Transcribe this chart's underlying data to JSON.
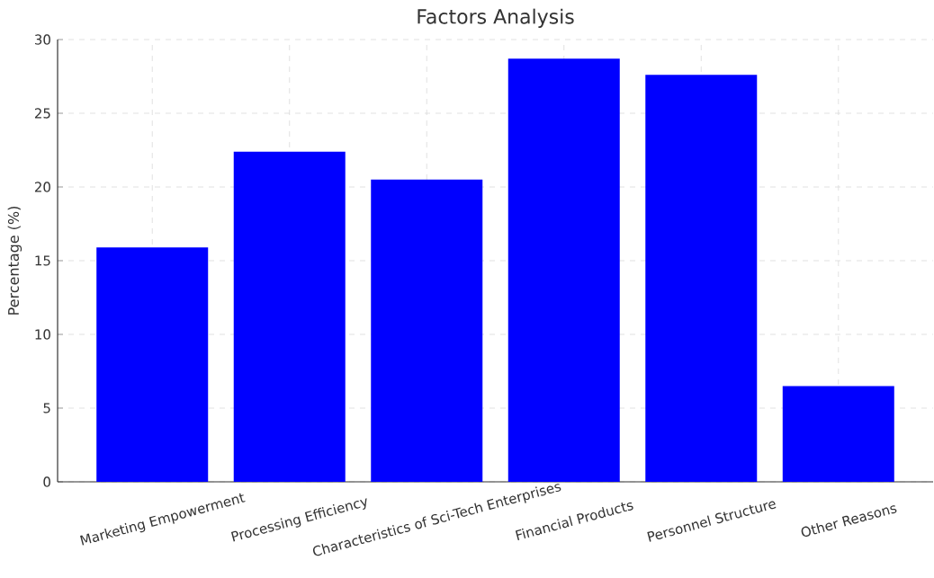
{
  "chart_data": {
    "type": "bar",
    "title": "Factors Analysis",
    "ylabel": "Percentage (%)",
    "categories": [
      "Marketing Empowerment",
      "Processing Efficiency",
      "Characteristics of Sci-Tech Enterprises",
      "Financial Products",
      "Personnel Structure",
      "Other Reasons"
    ],
    "values": [
      15.9,
      22.4,
      20.5,
      28.7,
      27.6,
      6.5
    ],
    "color": "#0000ff",
    "ylim": [
      0,
      30
    ],
    "yticks": [
      0,
      5,
      10,
      15,
      20,
      25,
      30
    ],
    "grid": true
  }
}
